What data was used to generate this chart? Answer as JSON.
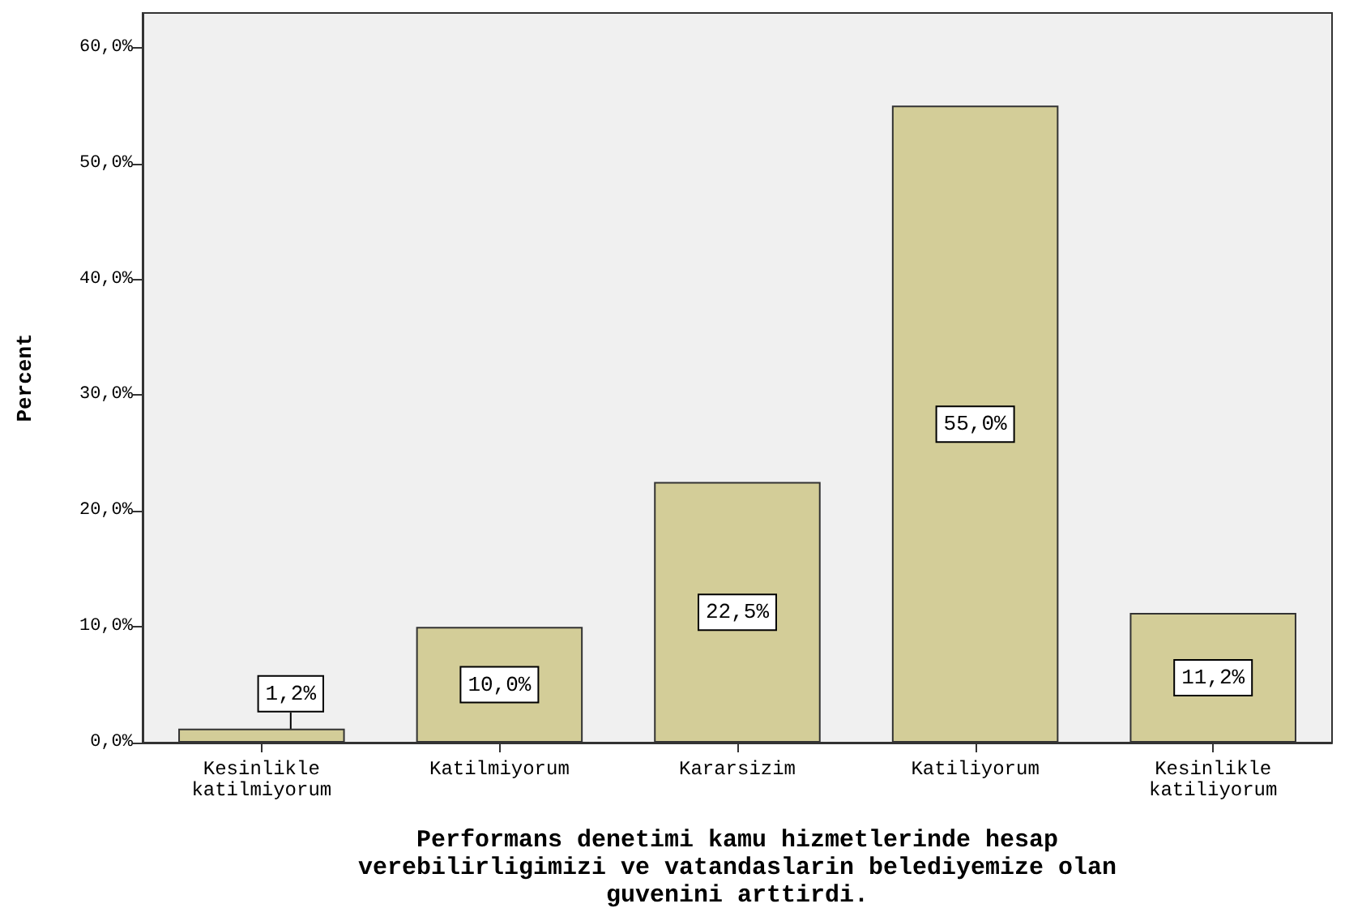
{
  "chart_data": {
    "type": "bar",
    "xlabel": "Performans denetimi kamu hizmetlerinde hesap verebilirligimizi ve vatandaslarin belediyemize olan guvenini arttirdi.",
    "ylabel": "Percent",
    "categories": [
      "Kesinlikle katilmiyorum",
      "Katilmiyorum",
      "Kararsizim",
      "Katiliyorum",
      "Kesinlikle katiliyorum"
    ],
    "values": [
      1.2,
      10.0,
      22.5,
      55.0,
      11.2
    ],
    "value_labels": [
      "1,2%",
      "10,0%",
      "22,5%",
      "55,0%",
      "11,2%"
    ],
    "color": "#d3cd98",
    "ylim": [
      0,
      63
    ],
    "yticks": [
      {
        "value": 0,
        "label": "0,0%"
      },
      {
        "value": 10,
        "label": "10,0%"
      },
      {
        "value": 20,
        "label": "20,0%"
      },
      {
        "value": 30,
        "label": "30,0%"
      },
      {
        "value": 40,
        "label": "40,0%"
      },
      {
        "value": 50,
        "label": "50,0%"
      },
      {
        "value": 60,
        "label": "60,0%"
      }
    ]
  }
}
